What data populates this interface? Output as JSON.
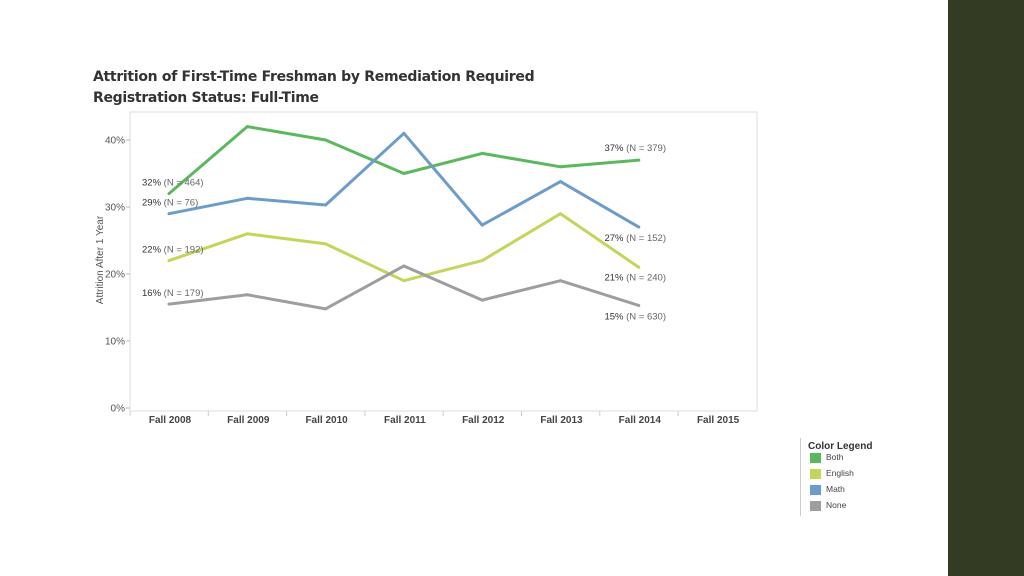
{
  "chart_data": {
    "type": "line",
    "title": "Attrition of First-Time Freshman by Remediation Required",
    "subtitle": "Registration Status: Full-Time",
    "ylabel": "Attrition After 1 Year",
    "xlabel": "",
    "categories": [
      "Fall 2008",
      "Fall 2009",
      "Fall 2010",
      "Fall 2011",
      "Fall 2012",
      "Fall 2013",
      "Fall 2014",
      "Fall 2015"
    ],
    "y_ticks": [
      "0%",
      "10%",
      "20%",
      "30%",
      "40%"
    ],
    "ylim": [
      0,
      40
    ],
    "grid": false,
    "legend_title": "Color Legend",
    "legend_position": "bottom-right",
    "series": [
      {
        "name": "Both",
        "color": "#5cb85c",
        "values": [
          32,
          42,
          40,
          35,
          38,
          36,
          37,
          null
        ],
        "first_label": {
          "pct": "32%",
          "n": "(N = 464)"
        },
        "last_label": {
          "pct": "37%",
          "n": "(N = 379)"
        }
      },
      {
        "name": "English",
        "color": "#c5d45a",
        "values": [
          22,
          26,
          24.5,
          19,
          22,
          29,
          21,
          null
        ],
        "first_label": {
          "pct": "22%",
          "n": "(N = 192)"
        },
        "last_label": {
          "pct": "21%",
          "n": "(N = 240)"
        }
      },
      {
        "name": "Math",
        "color": "#6d9ccc",
        "values": [
          29,
          31.3,
          30.3,
          41,
          27.3,
          33.8,
          27,
          null
        ],
        "first_label": {
          "pct": "29%",
          "n": "(N = 76)"
        },
        "last_label": {
          "pct": "27%",
          "n": "(N = 152)"
        }
      },
      {
        "name": "None",
        "color": "#9e9e9e",
        "values": [
          15.5,
          16.9,
          14.8,
          21.2,
          16.1,
          19,
          15.3,
          null
        ],
        "first_label": {
          "pct": "16%",
          "n": "(N = 179)"
        },
        "last_label": {
          "pct": "15%",
          "n": "(N = 630)"
        }
      }
    ]
  }
}
